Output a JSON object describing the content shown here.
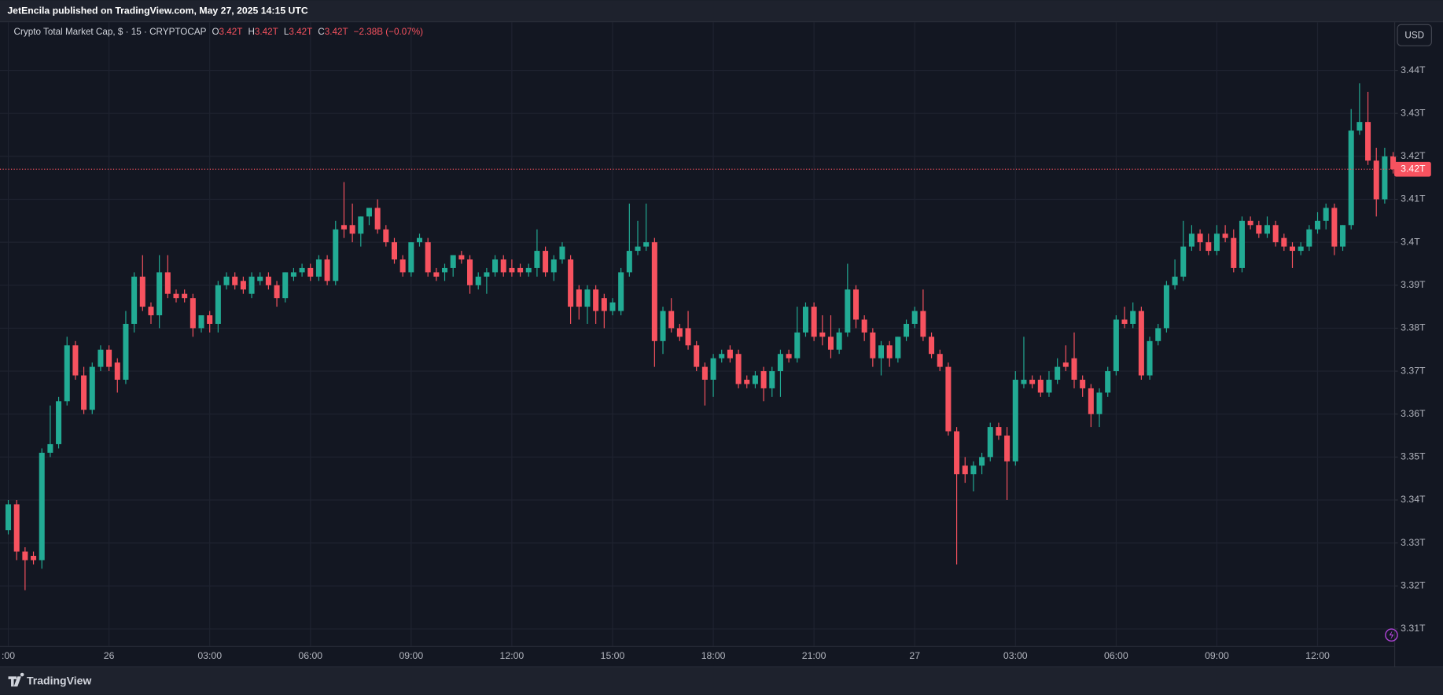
{
  "published": "JetEncila published on TradingView.com, May 27, 2025 14:15 UTC",
  "brand": "TradingView",
  "chart_data": {
    "type": "candlestick",
    "legend": {
      "symbol": "Crypto Total Market Cap, $ · 15 · CRYPTOCAP",
      "o_label": "O",
      "o": "3.42T",
      "h_label": "H",
      "h": "3.42T",
      "l_label": "L",
      "l": "3.42T",
      "c_label": "C",
      "c": "3.42T",
      "change": "−2.38B (−0.07%)"
    },
    "currency": "USD",
    "last_price_label": "3.42T",
    "up_color": "#22ab94",
    "down_color": "#f7525f",
    "grid": true,
    "ylim": [
      3.306,
      3.451
    ],
    "yticks": [
      {
        "value": 3.31,
        "label": "3.31T"
      },
      {
        "value": 3.32,
        "label": "3.32T"
      },
      {
        "value": 3.33,
        "label": "3.33T"
      },
      {
        "value": 3.34,
        "label": "3.34T"
      },
      {
        "value": 3.35,
        "label": "3.35T"
      },
      {
        "value": 3.36,
        "label": "3.36T"
      },
      {
        "value": 3.37,
        "label": "3.37T"
      },
      {
        "value": 3.38,
        "label": "3.38T"
      },
      {
        "value": 3.39,
        "label": "3.39T"
      },
      {
        "value": 3.4,
        "label": "3.4T"
      },
      {
        "value": 3.41,
        "label": "3.41T"
      },
      {
        "value": 3.42,
        "label": "3.42T"
      },
      {
        "value": 3.43,
        "label": "3.43T"
      },
      {
        "value": 3.44,
        "label": "3.44T"
      }
    ],
    "categories": [
      ":00",
      null,
      null,
      null,
      null,
      null,
      null,
      null,
      null,
      null,
      null,
      null,
      "26",
      null,
      null,
      null,
      null,
      null,
      null,
      null,
      null,
      null,
      null,
      null,
      "03:00",
      null,
      null,
      null,
      null,
      null,
      null,
      null,
      null,
      null,
      null,
      null,
      "06:00",
      null,
      null,
      null,
      null,
      null,
      null,
      null,
      null,
      null,
      null,
      null,
      "09:00",
      null,
      null,
      null,
      null,
      null,
      null,
      null,
      null,
      null,
      null,
      null,
      "12:00",
      null,
      null,
      null,
      null,
      null,
      null,
      null,
      null,
      null,
      null,
      null,
      "15:00",
      null,
      null,
      null,
      null,
      null,
      null,
      null,
      null,
      null,
      null,
      null,
      "18:00",
      null,
      null,
      null,
      null,
      null,
      null,
      null,
      null,
      null,
      null,
      null,
      "21:00",
      null,
      null,
      null,
      null,
      null,
      null,
      null,
      null,
      null,
      null,
      null,
      "27",
      null,
      null,
      null,
      null,
      null,
      null,
      null,
      null,
      null,
      null,
      null,
      "03:00",
      null,
      null,
      null,
      null,
      null,
      null,
      null,
      null,
      null,
      null,
      null,
      "06:00",
      null,
      null,
      null,
      null,
      null,
      null,
      null,
      null,
      null,
      null,
      null,
      "09:00",
      null,
      null,
      null,
      null,
      null,
      null,
      null,
      null,
      null,
      null,
      null,
      "12:00",
      null,
      null,
      null,
      null,
      null,
      null,
      null,
      null,
      null
    ],
    "open": [
      3.333,
      3.339,
      3.328,
      3.327,
      3.326,
      3.351,
      3.353,
      3.363,
      3.376,
      3.369,
      3.361,
      3.371,
      3.375,
      3.372,
      3.368,
      3.381,
      3.392,
      3.385,
      3.383,
      3.393,
      3.388,
      3.388,
      3.387,
      3.38,
      3.383,
      3.381,
      3.39,
      3.392,
      3.391,
      3.388,
      3.391,
      3.392,
      3.39,
      3.387,
      3.392,
      3.393,
      3.394,
      3.392,
      3.396,
      3.391,
      3.404,
      3.404,
      3.402,
      3.406,
      3.408,
      3.403,
      3.4,
      3.396,
      3.393,
      3.4,
      3.4,
      3.393,
      3.393,
      3.394,
      3.397,
      3.396,
      3.39,
      3.392,
      3.393,
      3.396,
      3.394,
      3.394,
      3.393,
      3.394,
      3.398,
      3.393,
      3.396,
      3.396,
      3.389,
      3.385,
      3.389,
      3.387,
      3.384,
      3.384,
      3.393,
      3.398,
      3.399,
      3.4,
      3.377,
      3.384,
      3.38,
      3.38,
      3.376,
      3.371,
      3.368,
      3.373,
      3.375,
      3.374,
      3.368,
      3.367,
      3.37,
      3.366,
      3.37,
      3.374,
      3.373,
      3.379,
      3.385,
      3.379,
      3.378,
      3.375,
      3.379,
      3.389,
      3.382,
      3.379,
      3.373,
      3.376,
      3.373,
      3.378,
      3.381,
      3.384,
      3.378,
      3.374,
      3.371,
      3.356,
      3.348,
      3.346,
      3.348,
      3.35,
      3.357,
      3.355,
      3.349,
      3.367,
      3.368,
      3.368,
      3.365,
      3.368,
      3.372,
      3.373,
      3.368,
      3.366,
      3.36,
      3.365,
      3.37,
      3.382,
      3.381,
      3.384,
      3.369,
      3.377,
      3.38,
      3.39,
      3.392,
      3.399,
      3.402,
      3.4,
      3.398,
      3.402,
      3.401,
      3.394,
      3.405,
      3.404,
      3.402,
      3.404,
      3.401,
      3.399,
      3.398,
      3.399,
      3.403,
      3.405,
      3.408,
      3.399,
      3.404,
      3.426,
      3.428,
      3.419,
      3.41,
      3.42
    ],
    "high": [
      3.34,
      3.34,
      3.329,
      3.328,
      3.352,
      3.362,
      3.364,
      3.378,
      3.377,
      3.371,
      3.372,
      3.376,
      3.376,
      3.373,
      3.384,
      3.393,
      3.397,
      3.386,
      3.397,
      3.397,
      3.389,
      3.389,
      3.388,
      3.383,
      3.384,
      3.391,
      3.393,
      3.393,
      3.392,
      3.393,
      3.393,
      3.393,
      3.391,
      3.393,
      3.394,
      3.395,
      3.395,
      3.397,
      3.397,
      3.405,
      3.414,
      3.409,
      3.406,
      3.408,
      3.41,
      3.404,
      3.401,
      3.397,
      3.4,
      3.402,
      3.401,
      3.394,
      3.395,
      3.397,
      3.398,
      3.397,
      3.393,
      3.394,
      3.397,
      3.397,
      3.396,
      3.395,
      3.395,
      3.403,
      3.399,
      3.397,
      3.4,
      3.397,
      3.39,
      3.39,
      3.39,
      3.388,
      3.387,
      3.394,
      3.409,
      3.405,
      3.409,
      3.401,
      3.385,
      3.387,
      3.381,
      3.384,
      3.377,
      3.372,
      3.374,
      3.375,
      3.376,
      3.375,
      3.369,
      3.37,
      3.371,
      3.371,
      3.375,
      3.375,
      3.385,
      3.386,
      3.386,
      3.383,
      3.383,
      3.38,
      3.395,
      3.39,
      3.383,
      3.38,
      3.377,
      3.377,
      3.378,
      3.382,
      3.385,
      3.389,
      3.379,
      3.375,
      3.372,
      3.357,
      3.35,
      3.349,
      3.351,
      3.358,
      3.358,
      3.357,
      3.37,
      3.378,
      3.369,
      3.369,
      3.37,
      3.373,
      3.376,
      3.379,
      3.369,
      3.367,
      3.366,
      3.371,
      3.383,
      3.385,
      3.386,
      3.385,
      3.378,
      3.381,
      3.391,
      3.396,
      3.405,
      3.404,
      3.403,
      3.402,
      3.404,
      3.404,
      3.403,
      3.406,
      3.406,
      3.405,
      3.406,
      3.405,
      3.402,
      3.4,
      3.4,
      3.404,
      3.407,
      3.409,
      3.409,
      3.404,
      3.431,
      3.437,
      3.435,
      3.422,
      3.422,
      3.421
    ],
    "low": [
      3.332,
      3.326,
      3.319,
      3.325,
      3.324,
      3.35,
      3.352,
      3.362,
      3.368,
      3.36,
      3.36,
      3.37,
      3.37,
      3.365,
      3.367,
      3.379,
      3.384,
      3.381,
      3.38,
      3.387,
      3.386,
      3.386,
      3.378,
      3.379,
      3.379,
      3.379,
      3.389,
      3.389,
      3.388,
      3.387,
      3.39,
      3.389,
      3.385,
      3.386,
      3.391,
      3.392,
      3.391,
      3.391,
      3.39,
      3.39,
      3.401,
      3.4,
      3.399,
      3.404,
      3.402,
      3.399,
      3.395,
      3.392,
      3.392,
      3.399,
      3.392,
      3.391,
      3.391,
      3.392,
      3.395,
      3.388,
      3.389,
      3.388,
      3.392,
      3.392,
      3.392,
      3.392,
      3.392,
      3.392,
      3.392,
      3.391,
      3.395,
      3.381,
      3.382,
      3.381,
      3.381,
      3.38,
      3.383,
      3.383,
      3.392,
      3.397,
      3.398,
      3.371,
      3.374,
      3.379,
      3.377,
      3.375,
      3.37,
      3.362,
      3.364,
      3.372,
      3.372,
      3.366,
      3.366,
      3.366,
      3.363,
      3.364,
      3.364,
      3.372,
      3.372,
      3.378,
      3.377,
      3.376,
      3.373,
      3.374,
      3.378,
      3.38,
      3.377,
      3.371,
      3.369,
      3.371,
      3.372,
      3.377,
      3.38,
      3.377,
      3.373,
      3.37,
      3.355,
      3.325,
      3.344,
      3.342,
      3.346,
      3.349,
      3.354,
      3.34,
      3.348,
      3.366,
      3.366,
      3.364,
      3.364,
      3.367,
      3.37,
      3.366,
      3.364,
      3.357,
      3.357,
      3.364,
      3.369,
      3.38,
      3.38,
      3.368,
      3.368,
      3.376,
      3.379,
      3.389,
      3.391,
      3.398,
      3.398,
      3.397,
      3.397,
      3.4,
      3.393,
      3.393,
      3.403,
      3.401,
      3.401,
      3.399,
      3.398,
      3.394,
      3.397,
      3.398,
      3.402,
      3.403,
      3.397,
      3.398,
      3.403,
      3.425,
      3.418,
      3.406,
      3.409,
      3.416
    ],
    "close": [
      3.339,
      3.328,
      3.326,
      3.326,
      3.351,
      3.353,
      3.363,
      3.376,
      3.369,
      3.361,
      3.371,
      3.375,
      3.371,
      3.368,
      3.381,
      3.392,
      3.385,
      3.383,
      3.393,
      3.388,
      3.387,
      3.387,
      3.38,
      3.383,
      3.381,
      3.39,
      3.392,
      3.39,
      3.389,
      3.392,
      3.392,
      3.39,
      3.387,
      3.393,
      3.393,
      3.394,
      3.392,
      3.396,
      3.391,
      3.403,
      3.403,
      3.402,
      3.406,
      3.408,
      3.403,
      3.4,
      3.396,
      3.393,
      3.4,
      3.401,
      3.393,
      3.392,
      3.394,
      3.397,
      3.396,
      3.39,
      3.392,
      3.393,
      3.396,
      3.393,
      3.393,
      3.393,
      3.394,
      3.398,
      3.393,
      3.396,
      3.399,
      3.385,
      3.385,
      3.389,
      3.384,
      3.384,
      3.386,
      3.393,
      3.398,
      3.399,
      3.4,
      3.377,
      3.384,
      3.38,
      3.378,
      3.376,
      3.371,
      3.368,
      3.373,
      3.374,
      3.373,
      3.367,
      3.367,
      3.369,
      3.366,
      3.37,
      3.374,
      3.373,
      3.379,
      3.385,
      3.378,
      3.378,
      3.375,
      3.379,
      3.389,
      3.382,
      3.379,
      3.373,
      3.376,
      3.373,
      3.378,
      3.381,
      3.384,
      3.378,
      3.374,
      3.371,
      3.356,
      3.346,
      3.346,
      3.348,
      3.35,
      3.357,
      3.355,
      3.349,
      3.368,
      3.368,
      3.367,
      3.365,
      3.368,
      3.371,
      3.371,
      3.368,
      3.366,
      3.36,
      3.365,
      3.37,
      3.382,
      3.381,
      3.384,
      3.369,
      3.377,
      3.38,
      3.39,
      3.392,
      3.399,
      3.402,
      3.4,
      3.398,
      3.402,
      3.401,
      3.394,
      3.405,
      3.404,
      3.402,
      3.404,
      3.4,
      3.399,
      3.398,
      3.399,
      3.403,
      3.405,
      3.408,
      3.399,
      3.404,
      3.426,
      3.428,
      3.419,
      3.41,
      3.42,
      3.417
    ]
  }
}
